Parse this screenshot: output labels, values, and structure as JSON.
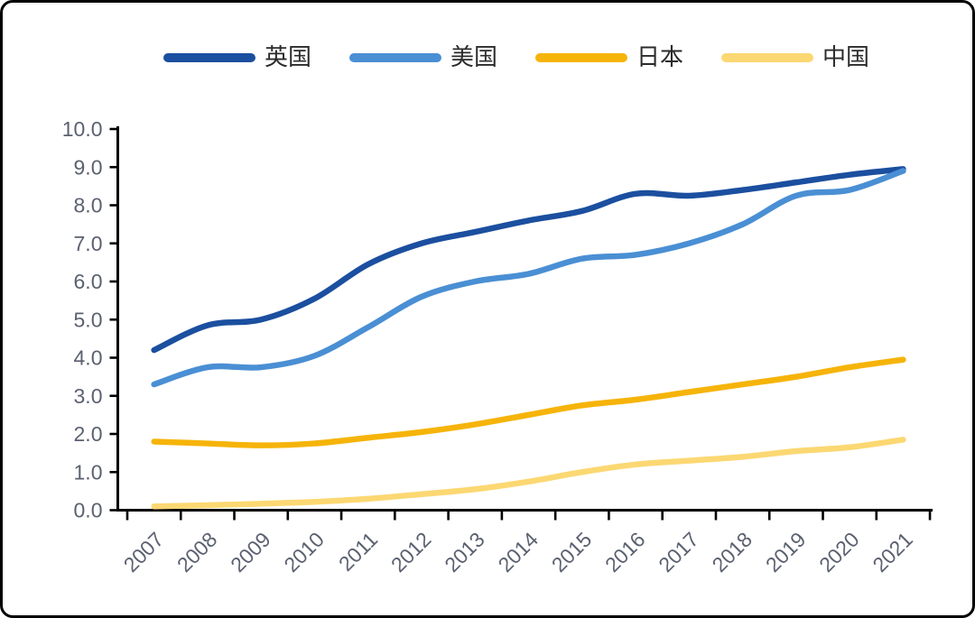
{
  "chart_data": {
    "type": "line",
    "title": "",
    "xlabel": "",
    "ylabel": "",
    "categories": [
      "2007",
      "2008",
      "2009",
      "2010",
      "2011",
      "2012",
      "2013",
      "2014",
      "2015",
      "2016",
      "2017",
      "2018",
      "2019",
      "2020",
      "2021"
    ],
    "series": [
      {
        "name": "英国",
        "color": "#1B4F9F",
        "values": [
          4.2,
          4.85,
          5.0,
          5.55,
          6.45,
          7.0,
          7.3,
          7.6,
          7.85,
          8.3,
          8.25,
          8.4,
          8.6,
          8.8,
          8.95
        ]
      },
      {
        "name": "美国",
        "color": "#4A8FD4",
        "values": [
          3.3,
          3.75,
          3.75,
          4.05,
          4.8,
          5.6,
          6.0,
          6.2,
          6.6,
          6.7,
          7.0,
          7.5,
          8.25,
          8.4,
          8.9
        ]
      },
      {
        "name": "日本",
        "color": "#F6B40A",
        "values": [
          1.8,
          1.75,
          1.7,
          1.75,
          1.9,
          2.05,
          2.25,
          2.5,
          2.75,
          2.9,
          3.1,
          3.3,
          3.5,
          3.75,
          3.95
        ]
      },
      {
        "name": "中国",
        "color": "#FCD873",
        "values": [
          0.1,
          0.13,
          0.17,
          0.22,
          0.3,
          0.42,
          0.55,
          0.75,
          1.0,
          1.2,
          1.3,
          1.4,
          1.55,
          1.65,
          1.85
        ]
      }
    ],
    "ylim": [
      0,
      10
    ],
    "ytick_step": 1.0,
    "ytick_labels": [
      "0.0",
      "1.0",
      "2.0",
      "3.0",
      "4.0",
      "5.0",
      "6.0",
      "7.0",
      "8.0",
      "9.0",
      "10.0"
    ],
    "xtick_label_rotation_deg": -45,
    "legend_position": "top",
    "grid": false,
    "axis_color": "#000000",
    "tick_label_color": "#5b6170"
  }
}
